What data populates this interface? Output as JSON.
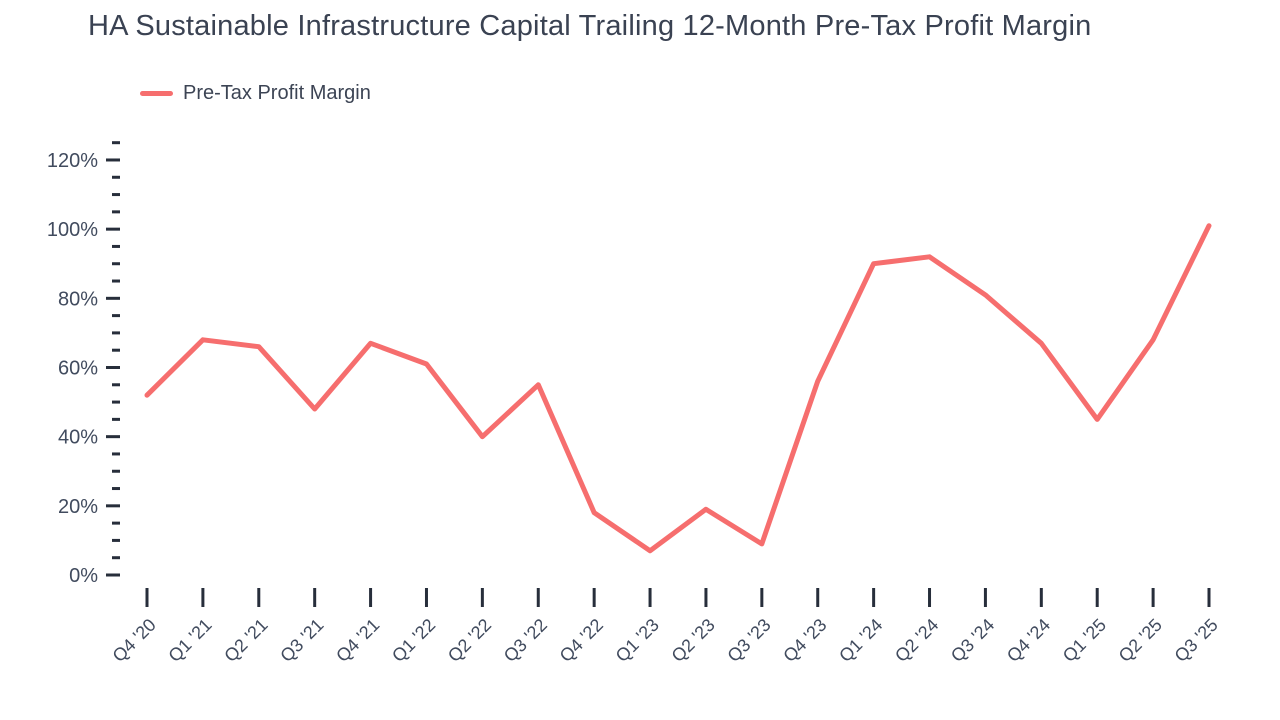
{
  "title": "HA Sustainable Infrastructure Capital Trailing 12-Month Pre-Tax Profit Margin",
  "legend": {
    "label": "Pre-Tax Profit Margin"
  },
  "colors": {
    "accent": "#F66E6E",
    "text": "#3C4454",
    "axis_label": "#414B5E",
    "tick": "#272E3B",
    "background": "#FFFFFF"
  },
  "y_axis": {
    "tick_labels": [
      "0%",
      "20%",
      "40%",
      "60%",
      "80%",
      "100%",
      "120%"
    ]
  },
  "chart_data": {
    "type": "line",
    "title": "HA Sustainable Infrastructure Capital Trailing 12-Month Pre-Tax Profit Margin",
    "categories": [
      "Q4 '20",
      "Q1 '21",
      "Q2 '21",
      "Q3 '21",
      "Q4 '21",
      "Q1 '22",
      "Q2 '22",
      "Q3 '22",
      "Q4 '22",
      "Q1 '23",
      "Q2 '23",
      "Q3 '23",
      "Q4 '23",
      "Q1 '24",
      "Q2 '24",
      "Q3 '24",
      "Q4 '24",
      "Q1 '25",
      "Q2 '25",
      "Q3 '25"
    ],
    "series": [
      {
        "name": "Pre-Tax Profit Margin",
        "color": "#F66E6E",
        "values": [
          52,
          68,
          66,
          48,
          67,
          61,
          40,
          55,
          18,
          7,
          19,
          9,
          56,
          90,
          92,
          81,
          67,
          45,
          68,
          101
        ]
      }
    ],
    "xlabel": "",
    "ylabel": "",
    "ytick_format": "percent",
    "ylim": [
      0,
      125
    ],
    "ytick_major_step": 20,
    "ytick_minor_step": 5,
    "grid": false,
    "legend_position": "top-left"
  }
}
